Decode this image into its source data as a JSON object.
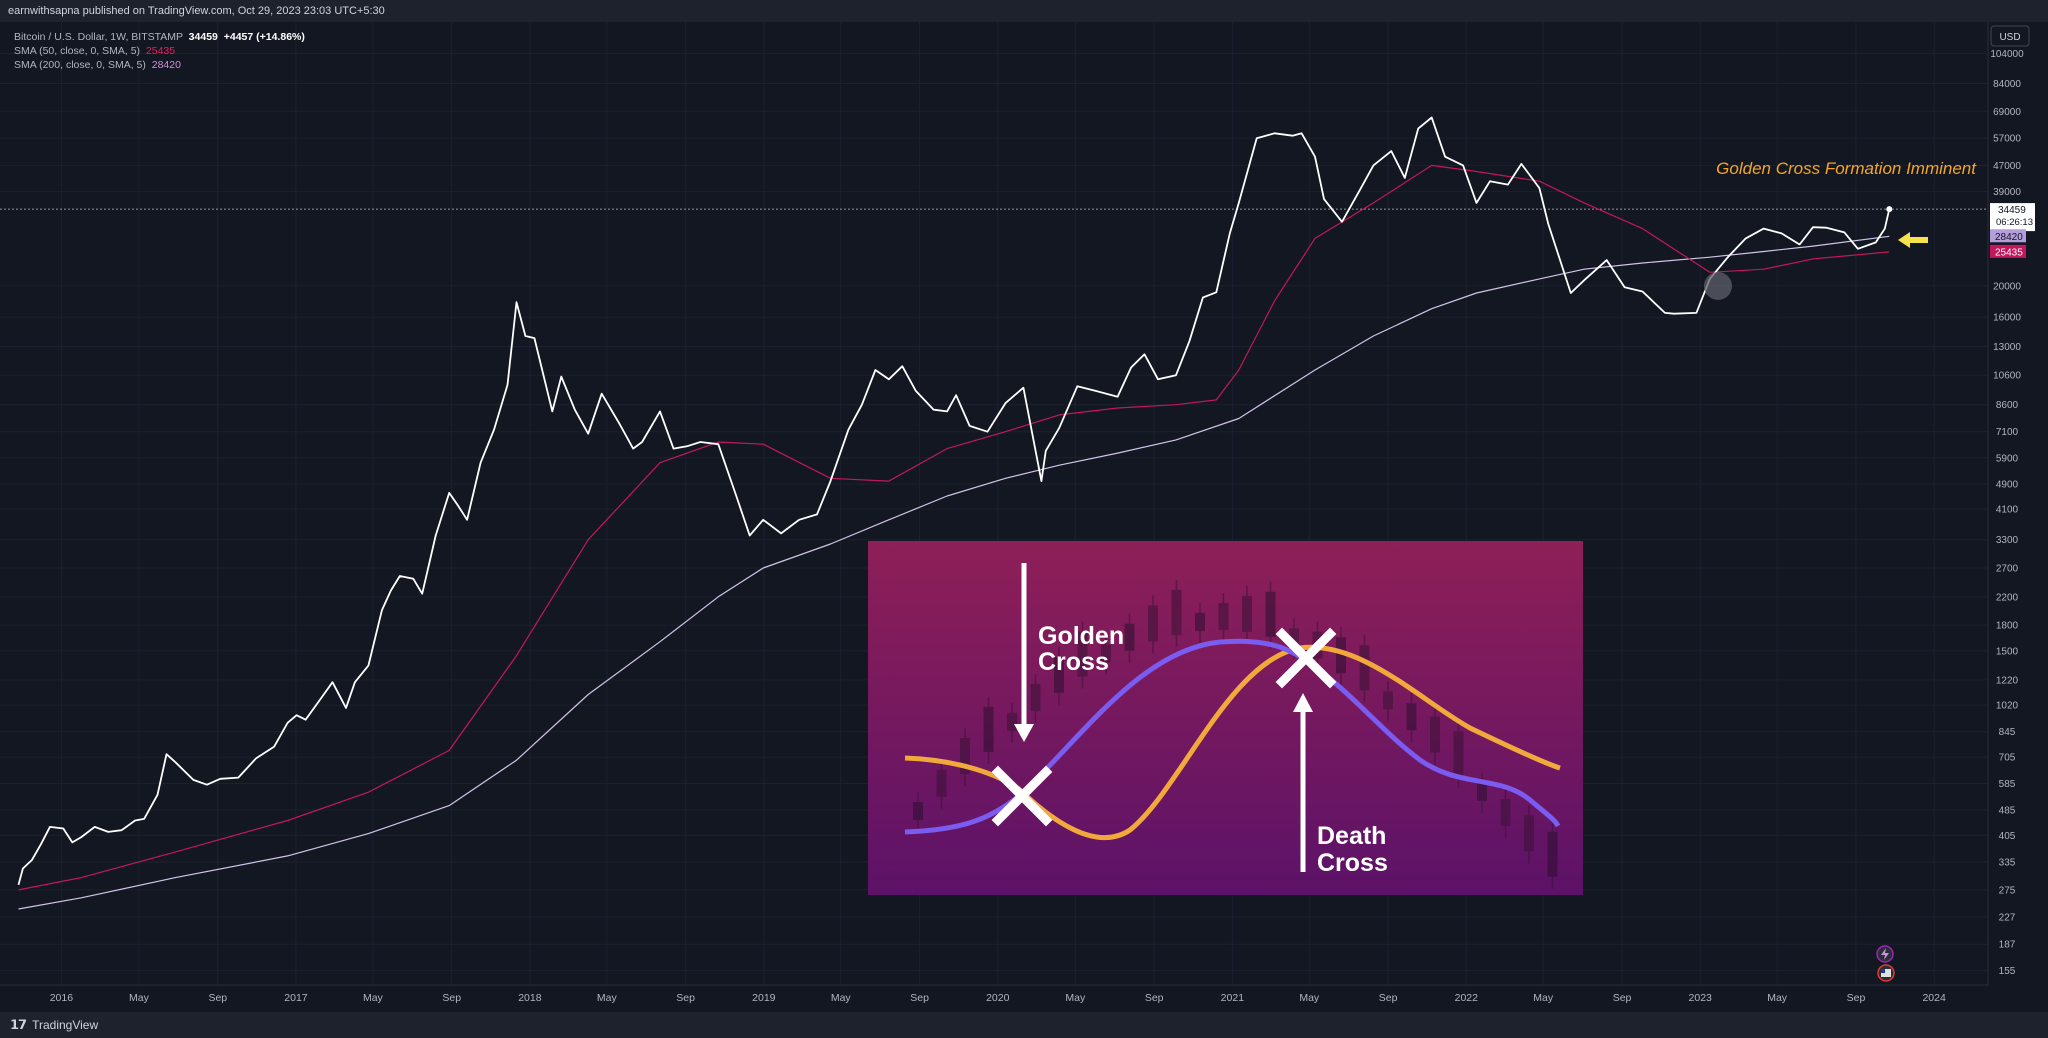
{
  "header": {
    "published": "earnwithsapna published on TradingView.com, Oct 29, 2023 23:03 UTC+5:30"
  },
  "legend": {
    "symbol": "Bitcoin / U.S. Dollar, 1W, BITSTAMP",
    "price": "34459",
    "change": "+4457 (+14.86%)",
    "sma50_label": "SMA (50, close, 0, SMA, 5)",
    "sma50_value": "25435",
    "sma200_label": "SMA (200, close, 0, SMA, 5)",
    "sma200_value": "28420"
  },
  "colors": {
    "background": "#131722",
    "price_line": "#ffffff",
    "sma50": "#c2185b",
    "sma200": "#d1c4e9",
    "annotation": "#f5a623",
    "arrow": "#f7e24b"
  },
  "annotation": {
    "text": "Golden Cross Formation Imminent"
  },
  "inset": {
    "golden_label_1": "Golden",
    "golden_label_2": "Cross",
    "death_label_1": "Death",
    "death_label_2": "Cross"
  },
  "footer": {
    "brand": "TradingView"
  },
  "chart_data": {
    "type": "line",
    "title": "Bitcoin / U.S. Dollar, 1W, BITSTAMP",
    "y_scale": "log",
    "currency": "USD",
    "ylim": [
      140,
      130000
    ],
    "y_ticks": [
      "104000",
      "84000",
      "69000",
      "57000",
      "47000",
      "39000",
      "20000",
      "16000",
      "13000",
      "10600",
      "8600",
      "7100",
      "5900",
      "4900",
      "4100",
      "3300",
      "2700",
      "2200",
      "1800",
      "1500",
      "1220",
      "1020",
      "845",
      "705",
      "585",
      "485",
      "405",
      "335",
      "275",
      "227",
      "187",
      "155"
    ],
    "x_ticks": [
      "2016",
      "May",
      "Sep",
      "2017",
      "May",
      "Sep",
      "2018",
      "May",
      "Sep",
      "2019",
      "May",
      "Sep",
      "2020",
      "May",
      "Sep",
      "2021",
      "May",
      "Sep",
      "2022",
      "May",
      "Sep",
      "2023",
      "May",
      "Sep",
      "2024"
    ],
    "price_labels": {
      "last": "34459",
      "countdown": "06:26:13",
      "sma200": "28420",
      "sma50": "25435"
    },
    "grid": true,
    "series": [
      {
        "name": "Bitcoin / U.S. Dollar",
        "x": [
          "2015-10-26",
          "2015-11-02",
          "2015-11-16",
          "2015-11-30",
          "2015-12-14",
          "2016-01-04",
          "2016-01-18",
          "2016-02-01",
          "2016-02-22",
          "2016-03-14",
          "2016-04-04",
          "2016-04-25",
          "2016-05-09",
          "2016-05-30",
          "2016-06-13",
          "2016-06-27",
          "2016-07-25",
          "2016-08-15",
          "2016-09-05",
          "2016-10-03",
          "2016-10-31",
          "2016-11-28",
          "2016-12-19",
          "2017-01-02",
          "2017-01-16",
          "2017-02-06",
          "2017-02-27",
          "2017-03-20",
          "2017-04-03",
          "2017-04-24",
          "2017-05-15",
          "2017-05-29",
          "2017-06-12",
          "2017-07-03",
          "2017-07-17",
          "2017-08-07",
          "2017-08-28",
          "2017-09-11",
          "2017-09-25",
          "2017-10-16",
          "2017-11-06",
          "2017-11-27",
          "2017-12-11",
          "2017-12-25",
          "2018-01-08",
          "2018-02-05",
          "2018-02-19",
          "2018-03-12",
          "2018-04-02",
          "2018-04-23",
          "2018-05-21",
          "2018-06-11",
          "2018-06-25",
          "2018-07-23",
          "2018-08-13",
          "2018-09-03",
          "2018-09-24",
          "2018-10-22",
          "2018-11-19",
          "2018-12-10",
          "2018-12-31",
          "2019-01-28",
          "2019-02-25",
          "2019-03-25",
          "2019-04-15",
          "2019-05-13",
          "2019-06-03",
          "2019-06-24",
          "2019-07-15",
          "2019-08-05",
          "2019-08-26",
          "2019-09-23",
          "2019-10-14",
          "2019-10-28",
          "2019-11-18",
          "2019-12-16",
          "2020-01-13",
          "2020-02-10",
          "2020-03-09",
          "2020-03-16",
          "2020-04-06",
          "2020-05-04",
          "2020-06-01",
          "2020-07-06",
          "2020-07-27",
          "2020-08-17",
          "2020-09-07",
          "2020-10-05",
          "2020-10-26",
          "2020-11-16",
          "2020-12-07",
          "2020-12-28",
          "2021-01-11",
          "2021-02-08",
          "2021-03-08",
          "2021-04-05",
          "2021-04-19",
          "2021-05-10",
          "2021-05-24",
          "2021-06-21",
          "2021-07-19",
          "2021-08-09",
          "2021-09-06",
          "2021-09-27",
          "2021-10-18",
          "2021-11-08",
          "2021-11-29",
          "2021-12-27",
          "2022-01-17",
          "2022-02-07",
          "2022-03-07",
          "2022-03-28",
          "2022-04-25",
          "2022-05-09",
          "2022-06-13",
          "2022-07-04",
          "2022-08-08",
          "2022-09-05",
          "2022-10-03",
          "2022-11-07",
          "2022-11-21",
          "2022-12-26",
          "2023-01-16",
          "2023-02-13",
          "2023-03-13",
          "2023-04-10",
          "2023-05-08",
          "2023-06-05",
          "2023-06-26",
          "2023-07-17",
          "2023-08-14",
          "2023-09-04",
          "2023-10-02",
          "2023-10-16",
          "2023-10-23"
        ],
        "values": [
          285,
          320,
          340,
          380,
          430,
          425,
          385,
          400,
          430,
          415,
          420,
          450,
          455,
          540,
          720,
          680,
          600,
          580,
          605,
          610,
          700,
          760,
          900,
          950,
          920,
          1050,
          1200,
          1000,
          1200,
          1350,
          2000,
          2300,
          2550,
          2500,
          2250,
          3400,
          4600,
          4200,
          3800,
          5700,
          7200,
          9900,
          17800,
          14000,
          13800,
          8200,
          10500,
          8300,
          7000,
          9300,
          7500,
          6300,
          6600,
          8200,
          6300,
          6400,
          6600,
          6500,
          4500,
          3400,
          3800,
          3450,
          3800,
          3950,
          5000,
          7200,
          8600,
          11000,
          10300,
          11300,
          9500,
          8300,
          8200,
          9200,
          7400,
          7100,
          8700,
          9700,
          5000,
          6200,
          7300,
          9800,
          9500,
          9100,
          11200,
          12300,
          10300,
          10600,
          13500,
          18400,
          19100,
          29000,
          36000,
          57000,
          59000,
          58000,
          59000,
          50000,
          37000,
          31500,
          39500,
          47000,
          52000,
          43000,
          61000,
          66000,
          50000,
          47000,
          36000,
          42000,
          41000,
          47500,
          40000,
          31000,
          19000,
          20800,
          24000,
          19800,
          19200,
          16500,
          16400,
          16500,
          21000,
          24500,
          28000,
          30000,
          29000,
          26800,
          30300,
          30200,
          29200,
          26000,
          27200,
          30000,
          34459
        ]
      },
      {
        "name": "SMA (50, close, 0, SMA, 5)",
        "x": [
          "2015-10-26",
          "2016-02-01",
          "2016-06-27",
          "2016-12-19",
          "2017-04-24",
          "2017-08-28",
          "2017-12-11",
          "2018-04-02",
          "2018-07-23",
          "2018-10-22",
          "2018-12-31",
          "2019-04-15",
          "2019-07-15",
          "2019-10-14",
          "2020-01-13",
          "2020-04-06",
          "2020-07-06",
          "2020-10-05",
          "2020-12-07",
          "2021-01-11",
          "2021-03-08",
          "2021-05-10",
          "2021-08-09",
          "2021-11-08",
          "2022-01-17",
          "2022-04-25",
          "2022-07-04",
          "2022-10-03",
          "2023-01-16",
          "2023-04-10",
          "2023-06-26",
          "2023-10-23"
        ],
        "values": [
          275,
          300,
          360,
          450,
          550,
          740,
          1450,
          3300,
          5700,
          6600,
          6500,
          5100,
          5000,
          6300,
          7100,
          8000,
          8400,
          8600,
          8900,
          11000,
          18000,
          28000,
          36000,
          47000,
          45000,
          42000,
          36000,
          30000,
          22000,
          22500,
          24200,
          25435
        ]
      },
      {
        "name": "SMA (200, close, 0, SMA, 5)",
        "x": [
          "2015-10-26",
          "2016-02-01",
          "2016-06-27",
          "2016-12-19",
          "2017-04-24",
          "2017-08-28",
          "2017-12-11",
          "2018-04-02",
          "2018-07-23",
          "2018-10-22",
          "2018-12-31",
          "2019-04-15",
          "2019-07-15",
          "2019-10-14",
          "2020-01-13",
          "2020-04-06",
          "2020-07-06",
          "2020-10-05",
          "2021-01-11",
          "2021-05-10",
          "2021-08-09",
          "2021-11-08",
          "2022-01-17",
          "2022-04-25",
          "2022-07-04",
          "2022-10-03",
          "2023-01-16",
          "2023-04-10",
          "2023-06-26",
          "2023-10-23"
        ],
        "values": [
          240,
          260,
          300,
          350,
          410,
          500,
          690,
          1100,
          1600,
          2200,
          2700,
          3200,
          3800,
          4500,
          5100,
          5600,
          6100,
          6700,
          7800,
          11000,
          14000,
          17000,
          19000,
          21000,
          22500,
          23500,
          24500,
          25500,
          26500,
          28420
        ]
      }
    ]
  }
}
